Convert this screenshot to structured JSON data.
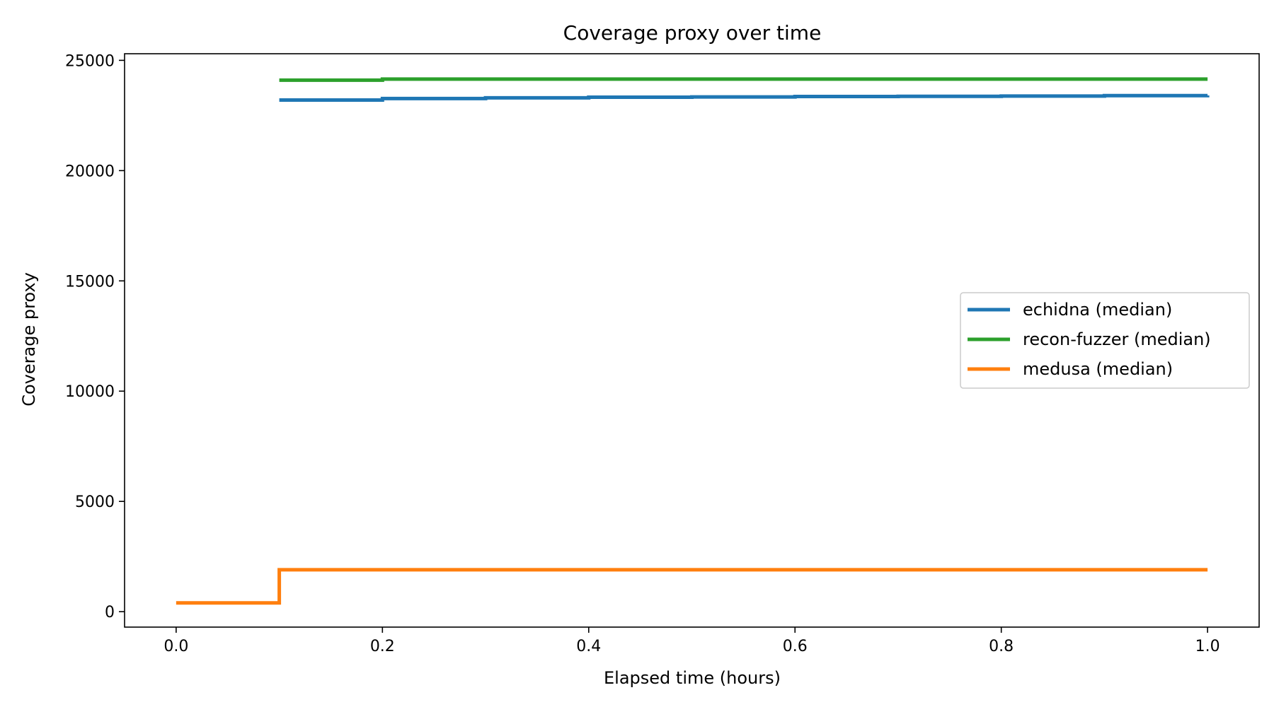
{
  "chart_data": {
    "type": "line",
    "title": "Coverage proxy over time",
    "xlabel": "Elapsed time (hours)",
    "ylabel": "Coverage proxy",
    "xlim": [
      -0.05,
      1.05
    ],
    "ylim": [
      -700,
      25300
    ],
    "xticks": [
      0.0,
      0.2,
      0.4,
      0.6,
      0.8,
      1.0
    ],
    "xtick_labels": [
      "0.0",
      "0.2",
      "0.4",
      "0.6",
      "0.8",
      "1.0"
    ],
    "yticks": [
      0,
      5000,
      10000,
      15000,
      20000,
      25000
    ],
    "ytick_labels": [
      "0",
      "5000",
      "10000",
      "15000",
      "20000",
      "25000"
    ],
    "grid": false,
    "legend_position": "center-right",
    "step": "post",
    "series": [
      {
        "name": "echidna (median)",
        "color": "#1f77b4",
        "x": [
          0.1,
          0.2,
          0.3,
          0.4,
          0.5,
          0.6,
          0.7,
          0.8,
          0.9,
          1.0
        ],
        "y": [
          23200,
          23270,
          23300,
          23330,
          23340,
          23360,
          23370,
          23380,
          23400,
          23410
        ]
      },
      {
        "name": "recon-fuzzer (median)",
        "color": "#2ca02c",
        "x": [
          0.1,
          0.2,
          0.3,
          0.4,
          0.5,
          0.6,
          0.7,
          0.8,
          0.9,
          1.0
        ],
        "y": [
          24100,
          24150,
          24150,
          24150,
          24150,
          24150,
          24150,
          24150,
          24150,
          24150
        ]
      },
      {
        "name": "medusa (median)",
        "color": "#ff7f0e",
        "x": [
          0.0,
          0.1,
          0.2,
          0.3,
          0.4,
          0.5,
          0.6,
          0.7,
          0.8,
          0.9,
          1.0
        ],
        "y": [
          400,
          1900,
          1900,
          1900,
          1900,
          1900,
          1900,
          1900,
          1900,
          1900,
          1900
        ]
      }
    ]
  }
}
